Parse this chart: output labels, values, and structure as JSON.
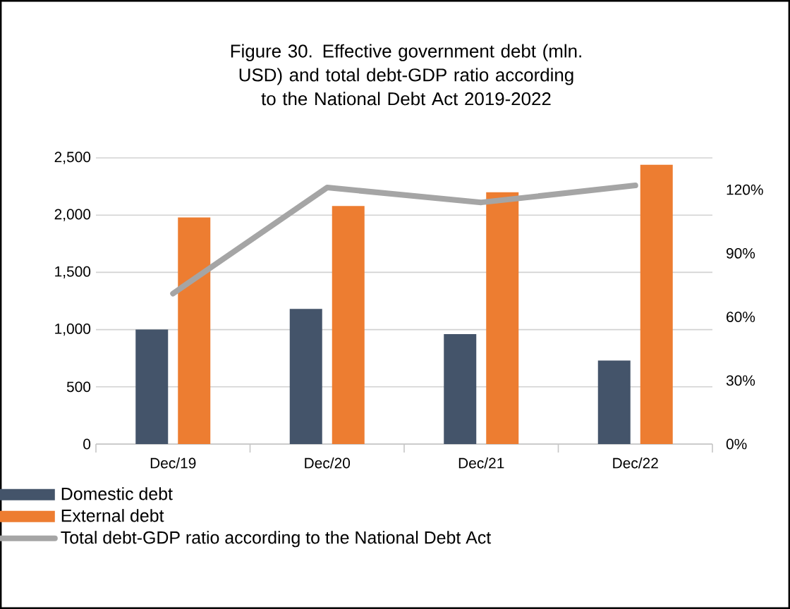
{
  "chart_data": {
    "type": "bar",
    "title": "Figure 30. Effective government debt (mln. USD) and total debt-GDP ratio according to the National Debt Act 2019-2022",
    "categories": [
      "Dec/19",
      "Dec/20",
      "Dec/21",
      "Dec/22"
    ],
    "series": [
      {
        "name": "Domestic debt",
        "color": "#44546a",
        "values": [
          1000,
          1180,
          960,
          730
        ]
      },
      {
        "name": "External debt",
        "color": "#ed7d31",
        "values": [
          1980,
          2080,
          2200,
          2440
        ]
      },
      {
        "name": "Total debt-GDP ratio according to the National Debt Act",
        "type": "line",
        "axis": "y2",
        "color": "#a5a5a5",
        "values": [
          71,
          121,
          114,
          122
        ]
      }
    ],
    "ylim": [
      0,
      2500
    ],
    "yticks": [
      0,
      500,
      {
        "value": 1000,
        "label": "1,000"
      },
      {
        "value": 1500,
        "label": "1,500"
      },
      {
        "value": 2000,
        "label": "2,000"
      },
      {
        "value": 2500,
        "label": "2,500"
      }
    ],
    "y2lim": [
      0,
      135
    ],
    "y2ticks": [
      {
        "value": 0,
        "label": "0%"
      },
      {
        "value": 30,
        "label": "30%"
      },
      {
        "value": 60,
        "label": "60%"
      },
      {
        "value": 90,
        "label": "90%"
      },
      {
        "value": 120,
        "label": "120%"
      }
    ],
    "grid": "y",
    "legend": "bottom left"
  }
}
